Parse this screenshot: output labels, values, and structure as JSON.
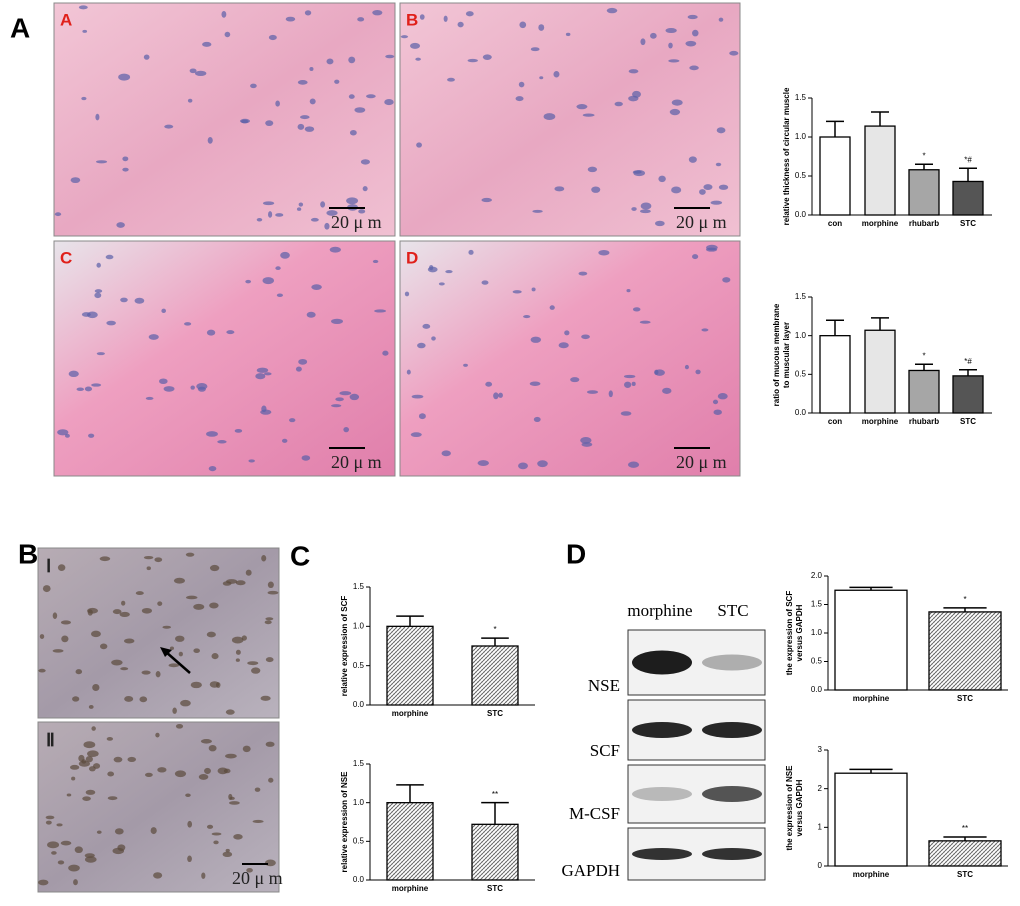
{
  "panel_letters": [
    "A",
    "B",
    "C",
    "D"
  ],
  "histology_a": {
    "labels": [
      "A",
      "B",
      "C",
      "D"
    ],
    "scale_bar": "20 μ m"
  },
  "histology_b": {
    "labels": [
      "Ⅰ",
      "Ⅱ"
    ],
    "scale_bar": "20 μ m"
  },
  "western_blot": {
    "columns": [
      "morphine",
      "STC"
    ],
    "rows": [
      "NSE",
      "SCF",
      "M-CSF",
      "GAPDH"
    ]
  },
  "chart_data": [
    {
      "type": "bar",
      "y_label": [
        "relative thickness of circular muscle"
      ],
      "categories": [
        "con",
        "morphine",
        "rhubarb",
        "STC"
      ],
      "values": [
        1.0,
        1.14,
        0.58,
        0.43
      ],
      "errors": [
        0.2,
        0.18,
        0.07,
        0.17
      ],
      "annotations": [
        null,
        null,
        "*",
        "*#"
      ],
      "colors": [
        "#ffffff",
        "#e6e6e6",
        "#a6a6a6",
        "#555555"
      ],
      "hatch": [
        false,
        false,
        false,
        false
      ],
      "ylim": [
        0,
        1.5
      ],
      "yticks": [
        {
          "value": 0,
          "label": "0.0"
        },
        {
          "value": 0.5,
          "label": "0.5"
        },
        {
          "value": 1,
          "label": "1.0"
        },
        {
          "value": 1.5,
          "label": "1.5"
        }
      ]
    },
    {
      "type": "bar",
      "y_label": [
        "ratio of mucous membrane",
        "to muscular layer"
      ],
      "categories": [
        "con",
        "morphine",
        "rhubarb",
        "STC"
      ],
      "values": [
        1.0,
        1.07,
        0.55,
        0.48
      ],
      "errors": [
        0.2,
        0.16,
        0.08,
        0.08
      ],
      "annotations": [
        null,
        null,
        "*",
        "*#"
      ],
      "colors": [
        "#ffffff",
        "#e6e6e6",
        "#a6a6a6",
        "#555555"
      ],
      "hatch": [
        false,
        false,
        false,
        false
      ],
      "ylim": [
        0,
        1.5
      ],
      "yticks": [
        {
          "value": 0,
          "label": "0.0"
        },
        {
          "value": 0.5,
          "label": "0.5"
        },
        {
          "value": 1,
          "label": "1.0"
        },
        {
          "value": 1.5,
          "label": "1.5"
        }
      ]
    },
    {
      "type": "bar",
      "y_label": [
        "relative expression of SCF"
      ],
      "categories": [
        "morphine",
        "STC"
      ],
      "values": [
        1.0,
        0.75
      ],
      "errors": [
        0.13,
        0.1
      ],
      "annotations": [
        null,
        "*"
      ],
      "colors": [
        "#ffffff",
        "#ffffff"
      ],
      "hatch": [
        true,
        true
      ],
      "ylim": [
        0,
        1.5
      ],
      "yticks": [
        {
          "value": 0,
          "label": "0.0"
        },
        {
          "value": 0.5,
          "label": "0.5"
        },
        {
          "value": 1,
          "label": "1.0"
        },
        {
          "value": 1.5,
          "label": "1.5"
        }
      ]
    },
    {
      "type": "bar",
      "y_label": [
        "relative expression of NSE"
      ],
      "categories": [
        "morphine",
        "STC"
      ],
      "values": [
        1.0,
        0.72
      ],
      "errors": [
        0.23,
        0.28
      ],
      "annotations": [
        null,
        "**"
      ],
      "colors": [
        "#ffffff",
        "#ffffff"
      ],
      "hatch": [
        true,
        true
      ],
      "ylim": [
        0,
        1.5
      ],
      "yticks": [
        {
          "value": 0,
          "label": "0.0"
        },
        {
          "value": 0.5,
          "label": "0.5"
        },
        {
          "value": 1,
          "label": "1.0"
        },
        {
          "value": 1.5,
          "label": "1.5"
        }
      ]
    },
    {
      "type": "bar",
      "y_label": [
        "the expression of SCF",
        "versus GAPDH"
      ],
      "categories": [
        "morphine",
        "STC"
      ],
      "values": [
        1.75,
        1.37
      ],
      "errors": [
        0.05,
        0.07
      ],
      "annotations": [
        null,
        "*"
      ],
      "colors": [
        "#ffffff",
        "#ffffff"
      ],
      "hatch": [
        false,
        true
      ],
      "ylim": [
        0,
        2
      ],
      "yticks": [
        {
          "value": 0,
          "label": "0.0"
        },
        {
          "value": 0.5,
          "label": "0.5"
        },
        {
          "value": 1,
          "label": "1.0"
        },
        {
          "value": 1.5,
          "label": "1.5"
        },
        {
          "value": 2,
          "label": "2.0"
        }
      ]
    },
    {
      "type": "bar",
      "y_label": [
        "the expression of NSE",
        "versus GAPDH"
      ],
      "categories": [
        "morphine",
        "STC"
      ],
      "values": [
        2.4,
        0.65
      ],
      "errors": [
        0.1,
        0.1
      ],
      "annotations": [
        null,
        "**"
      ],
      "colors": [
        "#ffffff",
        "#ffffff"
      ],
      "hatch": [
        false,
        true
      ],
      "ylim": [
        0,
        3
      ],
      "yticks": [
        0,
        1,
        2,
        3
      ]
    }
  ]
}
